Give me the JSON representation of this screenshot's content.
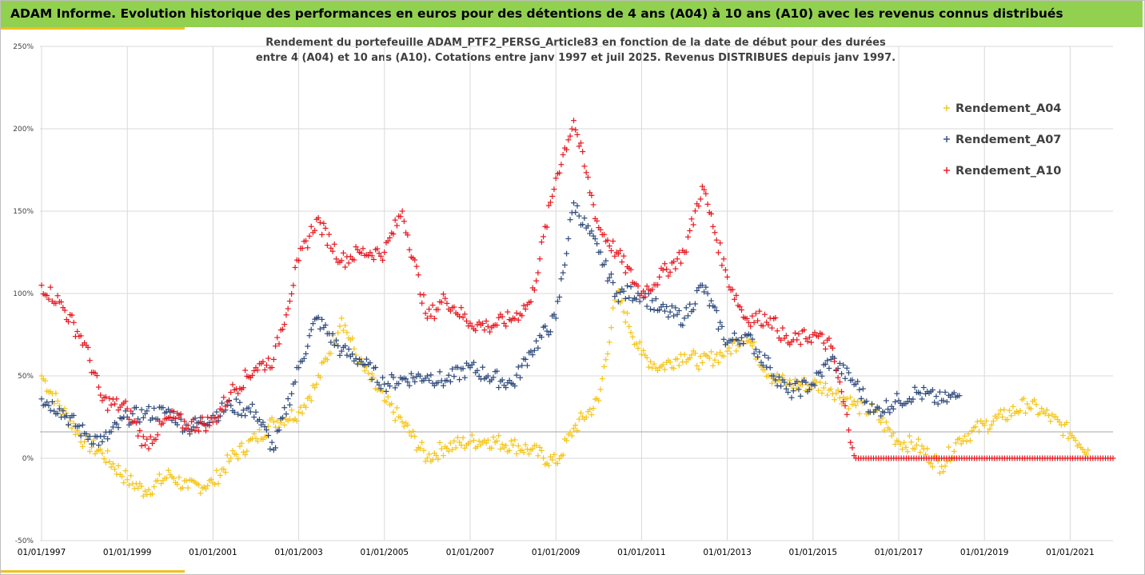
{
  "header": {
    "title": "ADAM Informe. Evolution historique des performances en euros pour des détentions de 4 ans (A04) à 10 ans (A10) avec les revenus connus distribués"
  },
  "subtitle": {
    "line1": "Rendement du portefeuille ADAM_PTF2_PERSG_Article83 en fonction de la date de début pour des durées",
    "line2": "entre 4 (A04) et 10 ans (A10). Cotations entre janv 1997 et juil 2025. Revenus DISTRIBUES depuis janv 1997."
  },
  "colors": {
    "header_bg": "#92d050",
    "accent": "#f0c020",
    "A04": "#f5c518",
    "A07": "#2f4b7c",
    "A10": "#e8171f",
    "grid": "#d9d9d9"
  },
  "chart_data": {
    "type": "scatter",
    "marker": "plus",
    "ylim": [
      -50,
      250
    ],
    "yticks": [
      -50,
      0,
      50,
      100,
      150,
      200,
      250
    ],
    "ytick_labels": [
      "-50%",
      "0%",
      "50%",
      "100%",
      "150%",
      "200%",
      "250%"
    ],
    "xlim": [
      "1997-01-01",
      "2022-01-01"
    ],
    "xtick_labels": [
      "01/01/1997",
      "01/01/1999",
      "01/01/2001",
      "01/01/2003",
      "01/01/2005",
      "01/01/2007",
      "01/01/2009",
      "01/01/2011",
      "01/01/2013",
      "01/01/2015",
      "01/01/2017",
      "01/01/2019",
      "01/01/2021"
    ],
    "reference_line": 16,
    "legend_position": "top-right",
    "series": [
      {
        "name": "Rendement_A04",
        "color": "#f5c518",
        "x": [
          "1997-01",
          "1997-06",
          "1998-01",
          "1998-06",
          "1999-01",
          "1999-06",
          "2000-01",
          "2000-06",
          "2001-01",
          "2001-06",
          "2002-01",
          "2002-06",
          "2003-01",
          "2003-06",
          "2004-01",
          "2004-06",
          "2005-01",
          "2005-06",
          "2006-01",
          "2006-06",
          "2007-01",
          "2007-06",
          "2008-01",
          "2008-06",
          "2009-01",
          "2009-06",
          "2010-01",
          "2010-06",
          "2011-01",
          "2011-06",
          "2012-01",
          "2012-06",
          "2013-01",
          "2013-06",
          "2014-01",
          "2014-06",
          "2015-01",
          "2015-06",
          "2016-01",
          "2016-06",
          "2017-01",
          "2017-06",
          "2018-01",
          "2018-06",
          "2019-01",
          "2019-06",
          "2020-01",
          "2020-06",
          "2021-01",
          "2021-06"
        ],
        "values": [
          50,
          32,
          10,
          3,
          -13,
          -20,
          -10,
          -18,
          -15,
          0,
          12,
          22,
          28,
          45,
          85,
          58,
          35,
          22,
          0,
          7,
          10,
          11,
          8,
          5,
          -3,
          18,
          35,
          100,
          63,
          55,
          63,
          58,
          65,
          75,
          50,
          45,
          45,
          42,
          32,
          28,
          10,
          8,
          -5,
          12,
          20,
          25,
          33,
          27,
          15,
          5
        ]
      },
      {
        "name": "Rendement_A07",
        "color": "#2f4b7c",
        "x": [
          "1997-01",
          "1997-06",
          "1998-01",
          "1998-06",
          "1999-01",
          "1999-06",
          "2000-01",
          "2000-06",
          "2001-01",
          "2001-06",
          "2002-01",
          "2002-06",
          "2003-01",
          "2003-06",
          "2004-01",
          "2004-06",
          "2005-01",
          "2005-06",
          "2006-01",
          "2006-06",
          "2007-01",
          "2007-06",
          "2008-01",
          "2008-06",
          "2009-01",
          "2009-06",
          "2010-01",
          "2010-06",
          "2011-01",
          "2011-06",
          "2012-01",
          "2012-06",
          "2013-01",
          "2013-06",
          "2014-01",
          "2014-06",
          "2015-01",
          "2015-06",
          "2016-01",
          "2016-06",
          "2017-01",
          "2017-06",
          "2018-01",
          "2018-06"
        ],
        "values": [
          36,
          30,
          15,
          10,
          25,
          27,
          28,
          18,
          26,
          32,
          28,
          5,
          55,
          85,
          65,
          60,
          45,
          48,
          50,
          47,
          55,
          50,
          45,
          65,
          85,
          155,
          125,
          100,
          100,
          90,
          85,
          105,
          70,
          75,
          55,
          40,
          45,
          60,
          45,
          28,
          35,
          40,
          35,
          38
        ]
      },
      {
        "name": "Rendement_A10",
        "color": "#e8171f",
        "x": [
          "1997-01",
          "1997-06",
          "1998-01",
          "1998-06",
          "1999-01",
          "1999-06",
          "2000-01",
          "2000-06",
          "2001-01",
          "2001-06",
          "2002-01",
          "2002-06",
          "2003-01",
          "2003-06",
          "2004-01",
          "2004-06",
          "2005-01",
          "2005-06",
          "2006-01",
          "2006-06",
          "2007-01",
          "2007-06",
          "2008-01",
          "2008-06",
          "2009-01",
          "2009-06",
          "2010-01",
          "2010-06",
          "2011-01",
          "2011-06",
          "2012-01",
          "2012-06",
          "2013-01",
          "2013-06",
          "2014-01",
          "2014-06",
          "2015-01",
          "2015-06",
          "2016-01",
          "2017-01",
          "2018-01",
          "2019-01",
          "2020-01",
          "2021-01",
          "2022-01"
        ],
        "values": [
          105,
          95,
          70,
          35,
          30,
          8,
          25,
          20,
          22,
          40,
          55,
          60,
          120,
          145,
          120,
          125,
          125,
          150,
          85,
          97,
          82,
          80,
          85,
          95,
          170,
          205,
          140,
          125,
          100,
          110,
          125,
          165,
          110,
          85,
          85,
          70,
          75,
          68,
          0,
          0,
          0,
          0,
          0,
          0,
          0
        ]
      }
    ]
  }
}
